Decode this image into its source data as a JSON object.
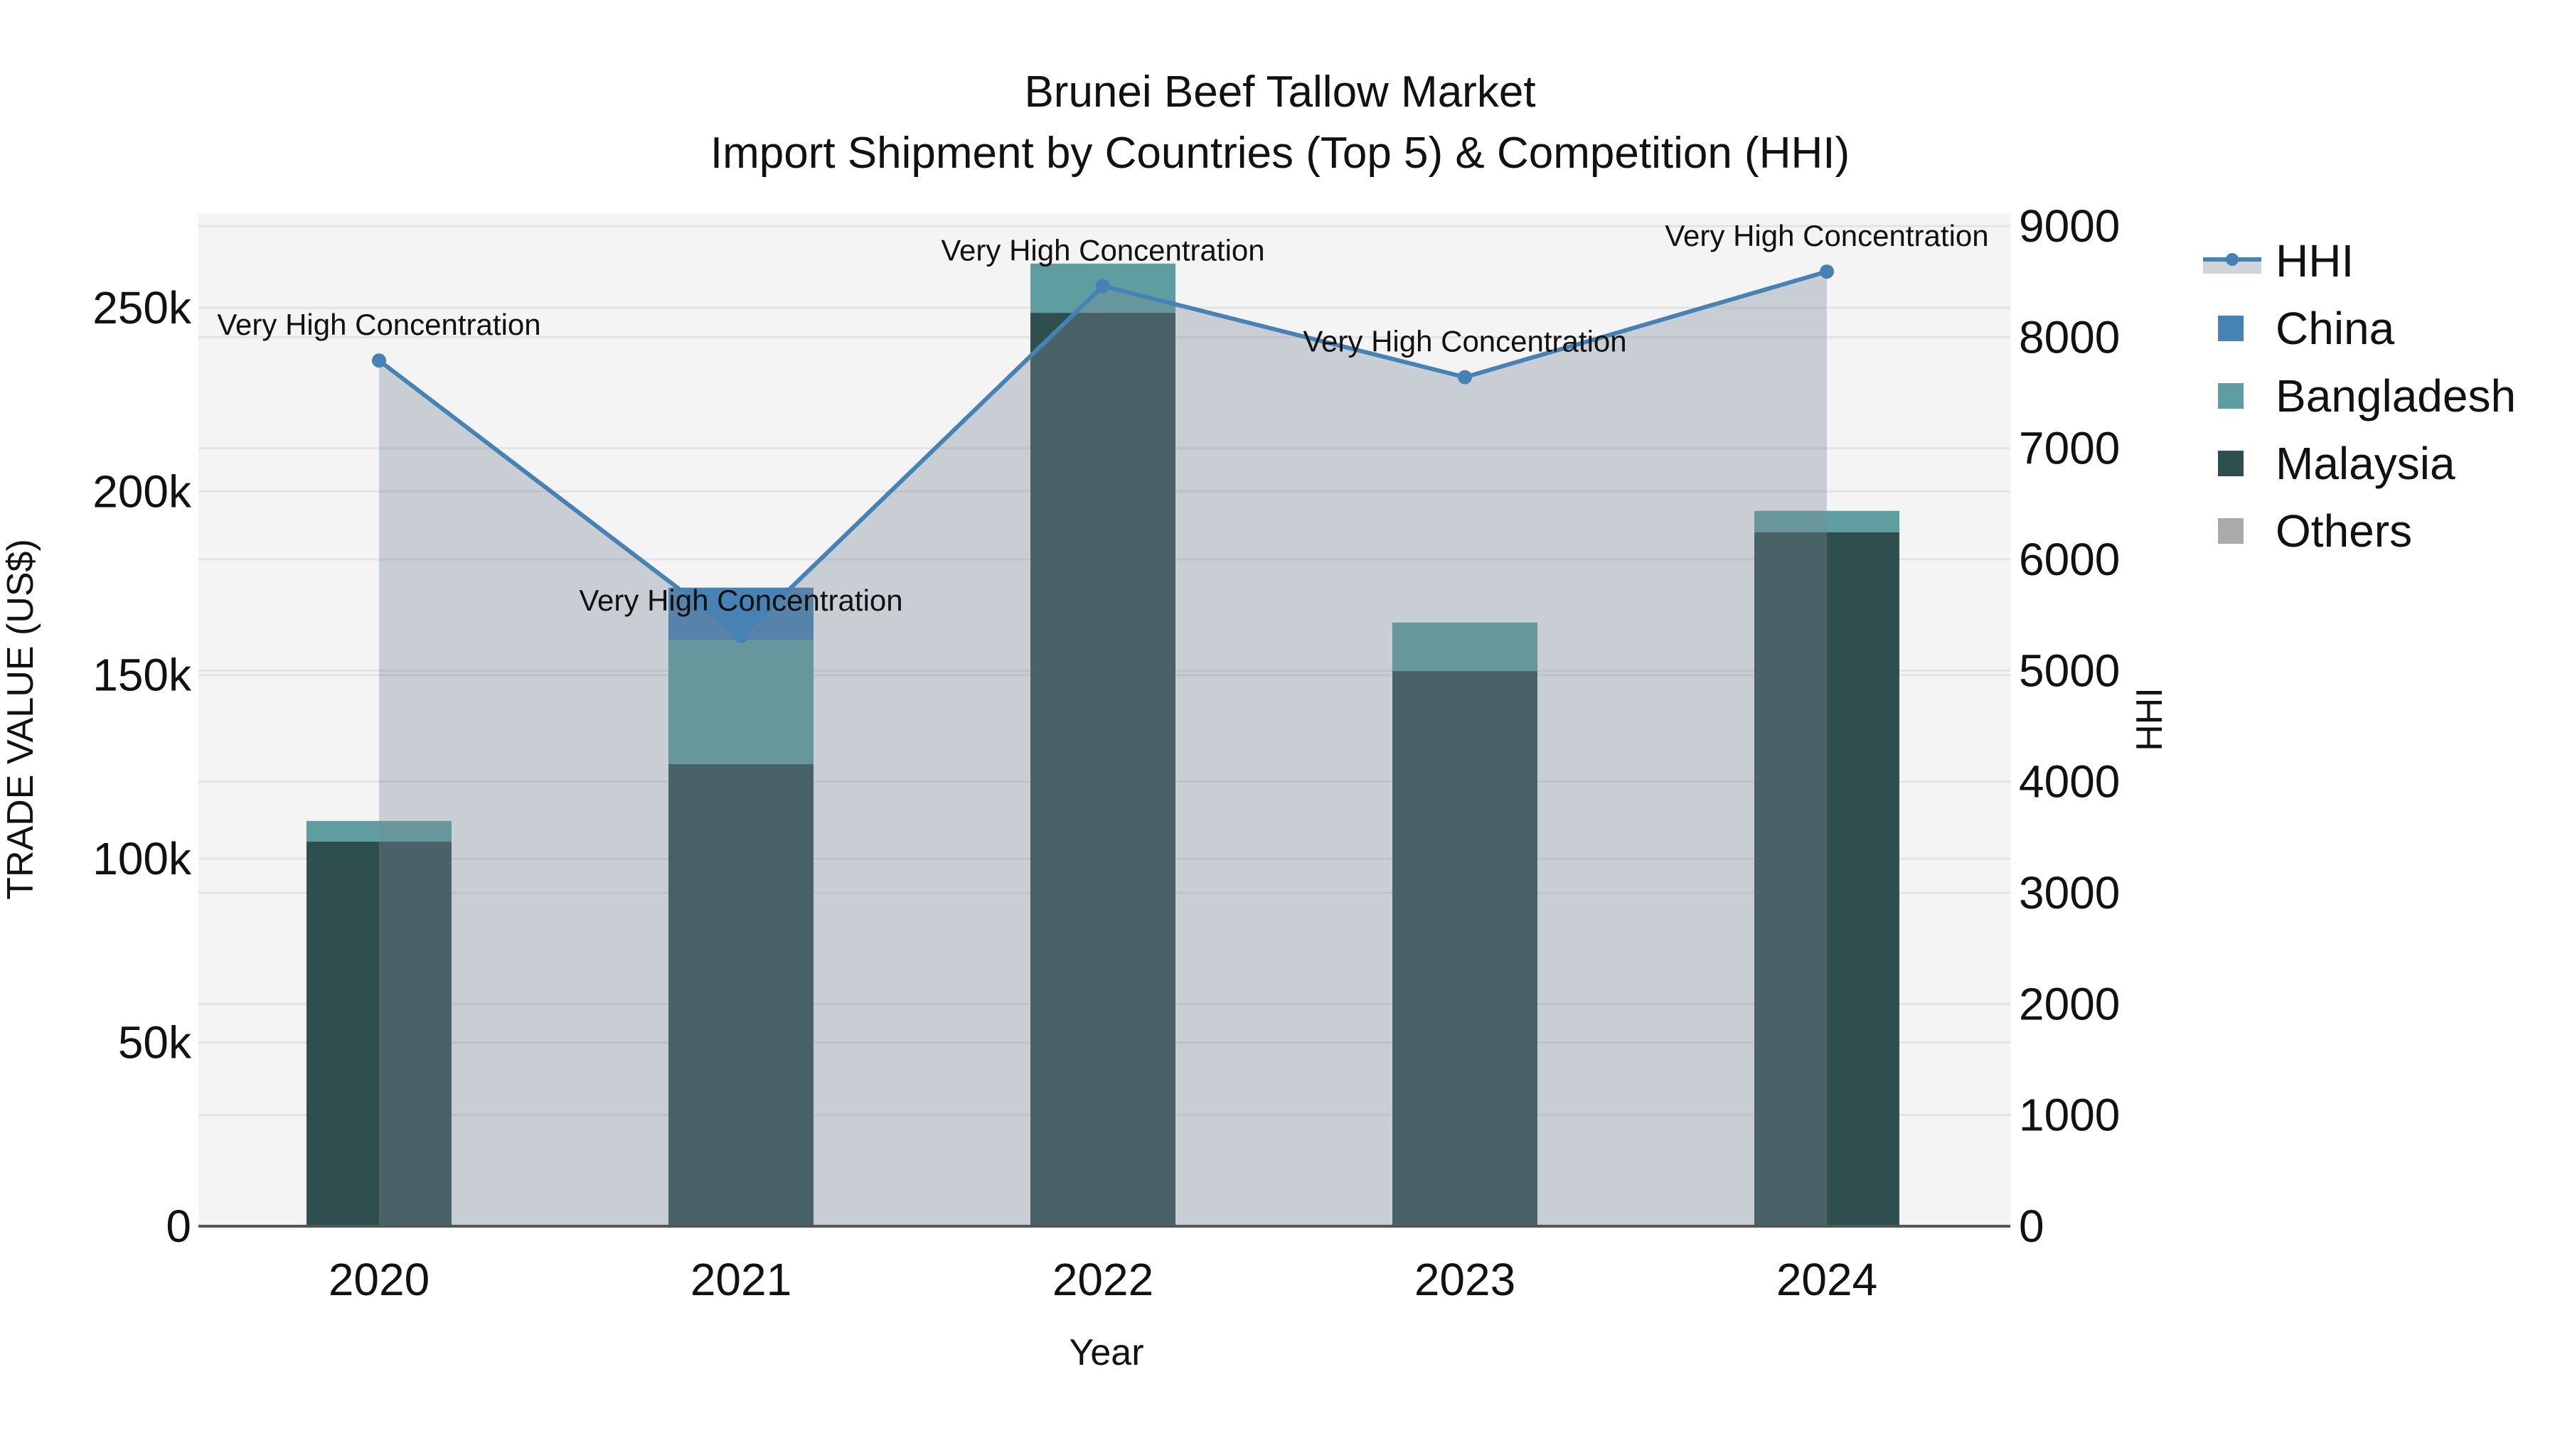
{
  "chart_data": {
    "type": "bar",
    "title": "Brunei Beef Tallow Market",
    "subtitle": "Import Shipment by Countries (Top 5) & Competition (HHI)",
    "xlabel": "Year",
    "ylabel": "TRADE VALUE (US$)",
    "y2label": "HHI",
    "categories": [
      "2020",
      "2021",
      "2022",
      "2023",
      "2024"
    ],
    "barmode": "stack",
    "series": [
      {
        "name": "Malaysia",
        "type": "bar",
        "axis": "left",
        "color": "#2f4f4f",
        "values": [
          104700,
          125800,
          248600,
          151100,
          188900
        ]
      },
      {
        "name": "Bangladesh",
        "type": "bar",
        "axis": "left",
        "color": "#5f9ea0",
        "values": [
          5600,
          33800,
          13400,
          13200,
          5800
        ]
      },
      {
        "name": "China",
        "type": "bar",
        "axis": "left",
        "color": "#4682b4",
        "values": [
          0,
          14200,
          0,
          0,
          0
        ]
      },
      {
        "name": "Others",
        "type": "bar",
        "axis": "left",
        "color": "#aaaaaa",
        "values": [
          0,
          0,
          0,
          0,
          0
        ]
      },
      {
        "name": "HHI",
        "type": "line",
        "axis": "right",
        "color": "#4682b4",
        "fill": "tozeroy",
        "fill_color": "rgba(119,136,153,0.35)",
        "values": [
          7790,
          5310,
          8460,
          7640,
          8590
        ]
      }
    ],
    "annotations": [
      {
        "x": "2020",
        "text": "Very High Concentration"
      },
      {
        "x": "2021",
        "text": "Very High Concentration"
      },
      {
        "x": "2022",
        "text": "Very High Concentration"
      },
      {
        "x": "2023",
        "text": "Very High Concentration"
      },
      {
        "x": "2024",
        "text": "Very High Concentration"
      }
    ],
    "yaxis": {
      "range": [
        0,
        275700
      ],
      "ticks": [
        0,
        50000,
        100000,
        150000,
        200000,
        250000
      ],
      "ticklabels": [
        "0",
        "50k",
        "100k",
        "150k",
        "200k",
        "250k"
      ]
    },
    "y2axis": {
      "range": [
        0,
        9115
      ],
      "ticks": [
        0,
        1000,
        2000,
        3000,
        4000,
        5000,
        6000,
        7000,
        8000,
        9000
      ],
      "ticklabels": [
        "0",
        "1000",
        "2000",
        "3000",
        "4000",
        "5000",
        "6000",
        "7000",
        "8000",
        "9000"
      ]
    },
    "grid": true,
    "legend": {
      "position": "right",
      "items": [
        {
          "name": "HHI",
          "symbol": "line-marker",
          "color": "#4682b4"
        },
        {
          "name": "China",
          "symbol": "square",
          "color": "#4682b4"
        },
        {
          "name": "Bangladesh",
          "symbol": "square",
          "color": "#5f9ea0"
        },
        {
          "name": "Malaysia",
          "symbol": "square",
          "color": "#2f4f4f"
        },
        {
          "name": "Others",
          "symbol": "square",
          "color": "#aaaaaa"
        }
      ]
    },
    "colors": {
      "plot_bg": "#f4f4f4",
      "grid": "#e3e3e3",
      "axis_line": "#555555",
      "hhi_fill": "rgba(119,136,153,0.35)"
    }
  }
}
